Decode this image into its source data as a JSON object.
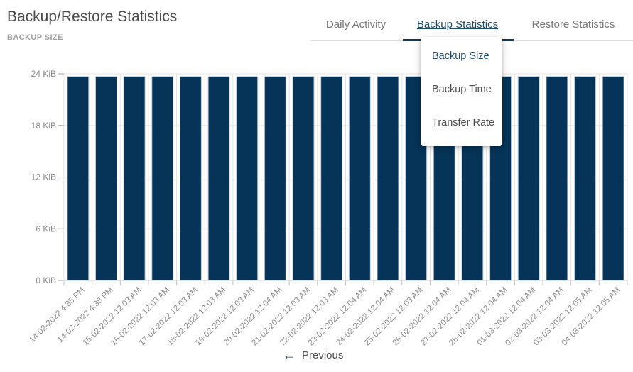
{
  "header": {
    "title": "Backup/Restore Statistics",
    "subtitle": "BACKUP SIZE"
  },
  "tabs": [
    {
      "label": "Daily Activity",
      "active": false
    },
    {
      "label": "Backup Statistics",
      "active": true
    },
    {
      "label": "Restore Statistics",
      "active": false
    }
  ],
  "dropdown": {
    "items": [
      {
        "label": "Backup Size",
        "selected": true
      },
      {
        "label": "Backup Time",
        "selected": false
      },
      {
        "label": "Transfer Rate",
        "selected": false
      }
    ]
  },
  "pagination": {
    "previous_label": "Previous",
    "arrow_icon": "←"
  },
  "colors": {
    "bar_fill": "#053458",
    "bar_stroke": "#bfcdd8",
    "accent_navy_text": "#1d4b70",
    "tab_indicator": "#0c3a5c",
    "inactive_tab_text": "#757575",
    "axis_text": "#8a8a8a",
    "gridline": "#e3e3e3",
    "axis_line": "#cccccc"
  },
  "chart_data": {
    "type": "bar",
    "title": "BACKUP SIZE",
    "xlabel": "",
    "ylabel": "",
    "unit": "KiB",
    "ylim": [
      0,
      24
    ],
    "y_tick_values": [
      0,
      6,
      12,
      18,
      24
    ],
    "y_tick_labels": [
      "0 KiB",
      "6 KiB",
      "12 KiB",
      "18 KiB",
      "24 KiB"
    ],
    "grid": true,
    "legend": false,
    "categories": [
      "14-02-2022 4:35 PM",
      "14-02-2022 4:38 PM",
      "15-02-2022 12:03 AM",
      "16-02-2022 12:03 AM",
      "17-02-2022 12:03 AM",
      "18-02-2022 12:03 AM",
      "19-02-2022 12:03 AM",
      "20-02-2022 12:04 AM",
      "21-02-2022 12:03 AM",
      "22-02-2022 12:03 AM",
      "23-02-2022 12:04 AM",
      "24-02-2022 12:04 AM",
      "25-02-2022 12:03 AM",
      "26-02-2022 12:04 AM",
      "27-02-2022 12:04 AM",
      "28-02-2022 12:04 AM",
      "01-03-2022 12:04 AM",
      "02-03-2022 12:04 AM",
      "03-03-2022 12:05 AM",
      "04-03-2022 12:05 AM"
    ],
    "values": [
      23.7,
      23.7,
      23.7,
      23.7,
      23.7,
      23.7,
      23.7,
      23.7,
      23.7,
      23.7,
      23.7,
      23.7,
      23.7,
      23.7,
      23.7,
      23.7,
      23.7,
      23.7,
      23.7,
      23.7
    ]
  }
}
